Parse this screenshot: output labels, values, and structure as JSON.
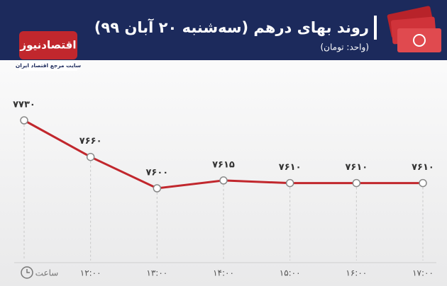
{
  "brand": {
    "logo": "اقتصادنیوز",
    "tagline": "سایت مرجع اقتصاد ایران"
  },
  "chart_data": {
    "type": "line",
    "title": "روند بهای درهم (سه‌شنبه ۲۰ آبان ۹۹)",
    "subtitle": "(واحد: تومان)",
    "x_label": "ساعت",
    "categories": [
      null,
      "۱۲:۰۰",
      "۱۳:۰۰",
      "۱۴:۰۰",
      "۱۵:۰۰",
      "۱۶:۰۰",
      "۱۷:۰۰"
    ],
    "values": [
      7730,
      7660,
      7600,
      7615,
      7610,
      7610,
      7610
    ],
    "value_labels": [
      "۷۷۳۰",
      "۷۶۶۰",
      "۷۶۰۰",
      "۷۶۱۵",
      "۷۶۱۰",
      "۷۶۱۰",
      "۷۶۱۰"
    ],
    "color": "#c1272d"
  }
}
